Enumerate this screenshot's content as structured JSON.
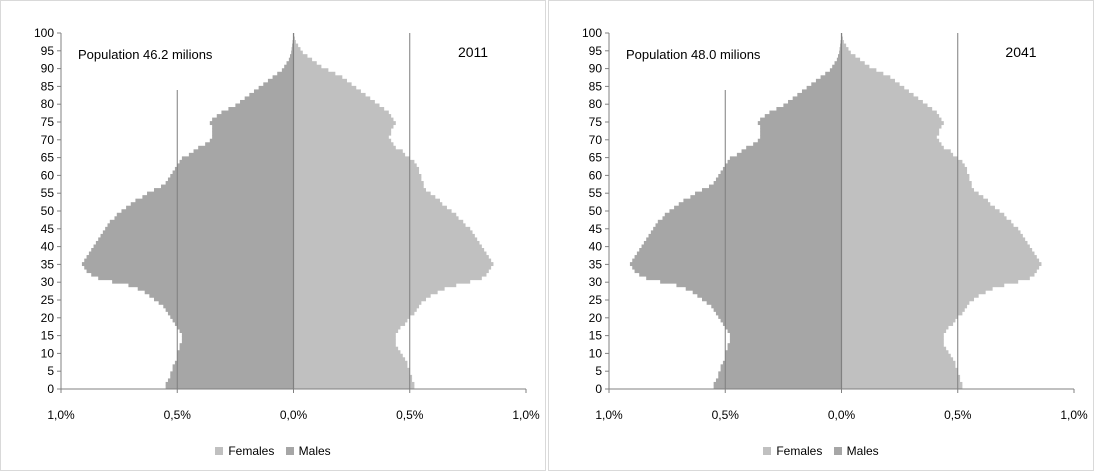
{
  "chart_data": [
    {
      "type": "bar",
      "orientation": "horizontal",
      "subtype": "population-pyramid",
      "year_label": "2011",
      "annotation": "Population 46.2 milions",
      "y_ticks": [
        "0",
        "5",
        "10",
        "15",
        "20",
        "25",
        "30",
        "35",
        "40",
        "45",
        "50",
        "55",
        "60",
        "65",
        "70",
        "75",
        "80",
        "85",
        "90",
        "95",
        "100"
      ],
      "x_ticks": [
        "1,0%",
        "0,5%",
        "0,0%",
        "0,5%",
        "1,0%"
      ],
      "xlim": [
        -1.0,
        1.0
      ],
      "ylim": [
        0,
        100
      ],
      "legend": [
        "Females",
        "Males"
      ],
      "legend_position": "bottom",
      "grid": false,
      "series": [
        {
          "name": "Males",
          "values": [
            0.55,
            0.55,
            0.54,
            0.53,
            0.53,
            0.52,
            0.52,
            0.51,
            0.5,
            0.5,
            0.5,
            0.49,
            0.49,
            0.48,
            0.48,
            0.48,
            0.49,
            0.5,
            0.51,
            0.52,
            0.53,
            0.54,
            0.55,
            0.56,
            0.58,
            0.6,
            0.62,
            0.64,
            0.67,
            0.71,
            0.78,
            0.84,
            0.87,
            0.89,
            0.9,
            0.91,
            0.9,
            0.89,
            0.88,
            0.87,
            0.86,
            0.85,
            0.84,
            0.83,
            0.82,
            0.81,
            0.8,
            0.79,
            0.77,
            0.76,
            0.74,
            0.72,
            0.7,
            0.68,
            0.65,
            0.63,
            0.6,
            0.57,
            0.55,
            0.54,
            0.53,
            0.52,
            0.51,
            0.5,
            0.49,
            0.48,
            0.45,
            0.43,
            0.41,
            0.38,
            0.36,
            0.35,
            0.35,
            0.35,
            0.35,
            0.36,
            0.35,
            0.33,
            0.31,
            0.28,
            0.25,
            0.23,
            0.21,
            0.19,
            0.17,
            0.15,
            0.13,
            0.11,
            0.09,
            0.07,
            0.05,
            0.04,
            0.03,
            0.02,
            0.015,
            0.01,
            0.008,
            0.006,
            0.004,
            0.002,
            0.001
          ]
        },
        {
          "name": "Females",
          "values": [
            0.52,
            0.52,
            0.51,
            0.51,
            0.5,
            0.5,
            0.49,
            0.49,
            0.48,
            0.47,
            0.46,
            0.45,
            0.44,
            0.44,
            0.44,
            0.44,
            0.45,
            0.46,
            0.48,
            0.49,
            0.5,
            0.52,
            0.53,
            0.54,
            0.55,
            0.57,
            0.59,
            0.62,
            0.65,
            0.7,
            0.76,
            0.81,
            0.83,
            0.84,
            0.85,
            0.86,
            0.85,
            0.84,
            0.83,
            0.82,
            0.81,
            0.8,
            0.79,
            0.78,
            0.77,
            0.76,
            0.74,
            0.73,
            0.71,
            0.7,
            0.68,
            0.66,
            0.64,
            0.63,
            0.61,
            0.59,
            0.57,
            0.56,
            0.56,
            0.55,
            0.55,
            0.54,
            0.54,
            0.53,
            0.52,
            0.5,
            0.48,
            0.47,
            0.44,
            0.43,
            0.42,
            0.41,
            0.42,
            0.42,
            0.43,
            0.44,
            0.43,
            0.42,
            0.41,
            0.39,
            0.37,
            0.35,
            0.33,
            0.31,
            0.29,
            0.27,
            0.25,
            0.23,
            0.21,
            0.18,
            0.15,
            0.12,
            0.1,
            0.08,
            0.06,
            0.04,
            0.03,
            0.02,
            0.01,
            0.006,
            0.003
          ]
        }
      ]
    },
    {
      "type": "bar",
      "orientation": "horizontal",
      "subtype": "population-pyramid",
      "year_label": "2041",
      "annotation": "Population 48.0 milions",
      "y_ticks": [
        "0",
        "5",
        "10",
        "15",
        "20",
        "25",
        "30",
        "35",
        "40",
        "45",
        "50",
        "55",
        "60",
        "65",
        "70",
        "75",
        "80",
        "85",
        "90",
        "95",
        "100"
      ],
      "x_ticks": [
        "1,0%",
        "0,5%",
        "0,0%",
        "0,5%",
        "1,0%"
      ],
      "xlim": [
        -1.0,
        1.0
      ],
      "ylim": [
        0,
        100
      ],
      "legend": [
        "Females",
        "Males"
      ],
      "legend_position": "bottom",
      "grid": false,
      "series": [
        {
          "name": "Males",
          "values": [
            0.55,
            0.55,
            0.54,
            0.53,
            0.53,
            0.52,
            0.52,
            0.51,
            0.5,
            0.5,
            0.5,
            0.49,
            0.49,
            0.48,
            0.48,
            0.48,
            0.49,
            0.5,
            0.51,
            0.52,
            0.53,
            0.54,
            0.55,
            0.56,
            0.58,
            0.6,
            0.62,
            0.64,
            0.67,
            0.71,
            0.78,
            0.84,
            0.87,
            0.89,
            0.9,
            0.91,
            0.9,
            0.89,
            0.88,
            0.87,
            0.86,
            0.85,
            0.84,
            0.83,
            0.82,
            0.81,
            0.8,
            0.79,
            0.77,
            0.76,
            0.74,
            0.72,
            0.7,
            0.68,
            0.65,
            0.63,
            0.6,
            0.57,
            0.55,
            0.54,
            0.53,
            0.52,
            0.51,
            0.5,
            0.49,
            0.48,
            0.45,
            0.43,
            0.41,
            0.38,
            0.36,
            0.35,
            0.35,
            0.35,
            0.35,
            0.36,
            0.35,
            0.33,
            0.31,
            0.28,
            0.25,
            0.23,
            0.21,
            0.19,
            0.17,
            0.15,
            0.13,
            0.11,
            0.09,
            0.07,
            0.05,
            0.04,
            0.03,
            0.02,
            0.015,
            0.01,
            0.008,
            0.006,
            0.004,
            0.002,
            0.001
          ]
        },
        {
          "name": "Females",
          "values": [
            0.52,
            0.52,
            0.51,
            0.51,
            0.5,
            0.5,
            0.49,
            0.49,
            0.48,
            0.47,
            0.46,
            0.45,
            0.44,
            0.44,
            0.44,
            0.44,
            0.45,
            0.46,
            0.48,
            0.49,
            0.5,
            0.52,
            0.53,
            0.54,
            0.55,
            0.57,
            0.59,
            0.62,
            0.65,
            0.7,
            0.76,
            0.81,
            0.83,
            0.84,
            0.85,
            0.86,
            0.85,
            0.84,
            0.83,
            0.82,
            0.81,
            0.8,
            0.79,
            0.78,
            0.77,
            0.76,
            0.74,
            0.73,
            0.71,
            0.7,
            0.68,
            0.66,
            0.64,
            0.63,
            0.61,
            0.59,
            0.57,
            0.56,
            0.56,
            0.55,
            0.55,
            0.54,
            0.54,
            0.53,
            0.52,
            0.5,
            0.48,
            0.47,
            0.44,
            0.43,
            0.42,
            0.41,
            0.42,
            0.42,
            0.43,
            0.44,
            0.43,
            0.42,
            0.41,
            0.39,
            0.37,
            0.35,
            0.33,
            0.31,
            0.29,
            0.27,
            0.25,
            0.23,
            0.21,
            0.18,
            0.15,
            0.12,
            0.1,
            0.08,
            0.06,
            0.04,
            0.03,
            0.02,
            0.01,
            0.006,
            0.003
          ]
        }
      ]
    }
  ],
  "colors": {
    "males": "#a6a6a6",
    "females": "#c0c0c0",
    "axis": "#808080",
    "refline": "#7f7f7f"
  }
}
